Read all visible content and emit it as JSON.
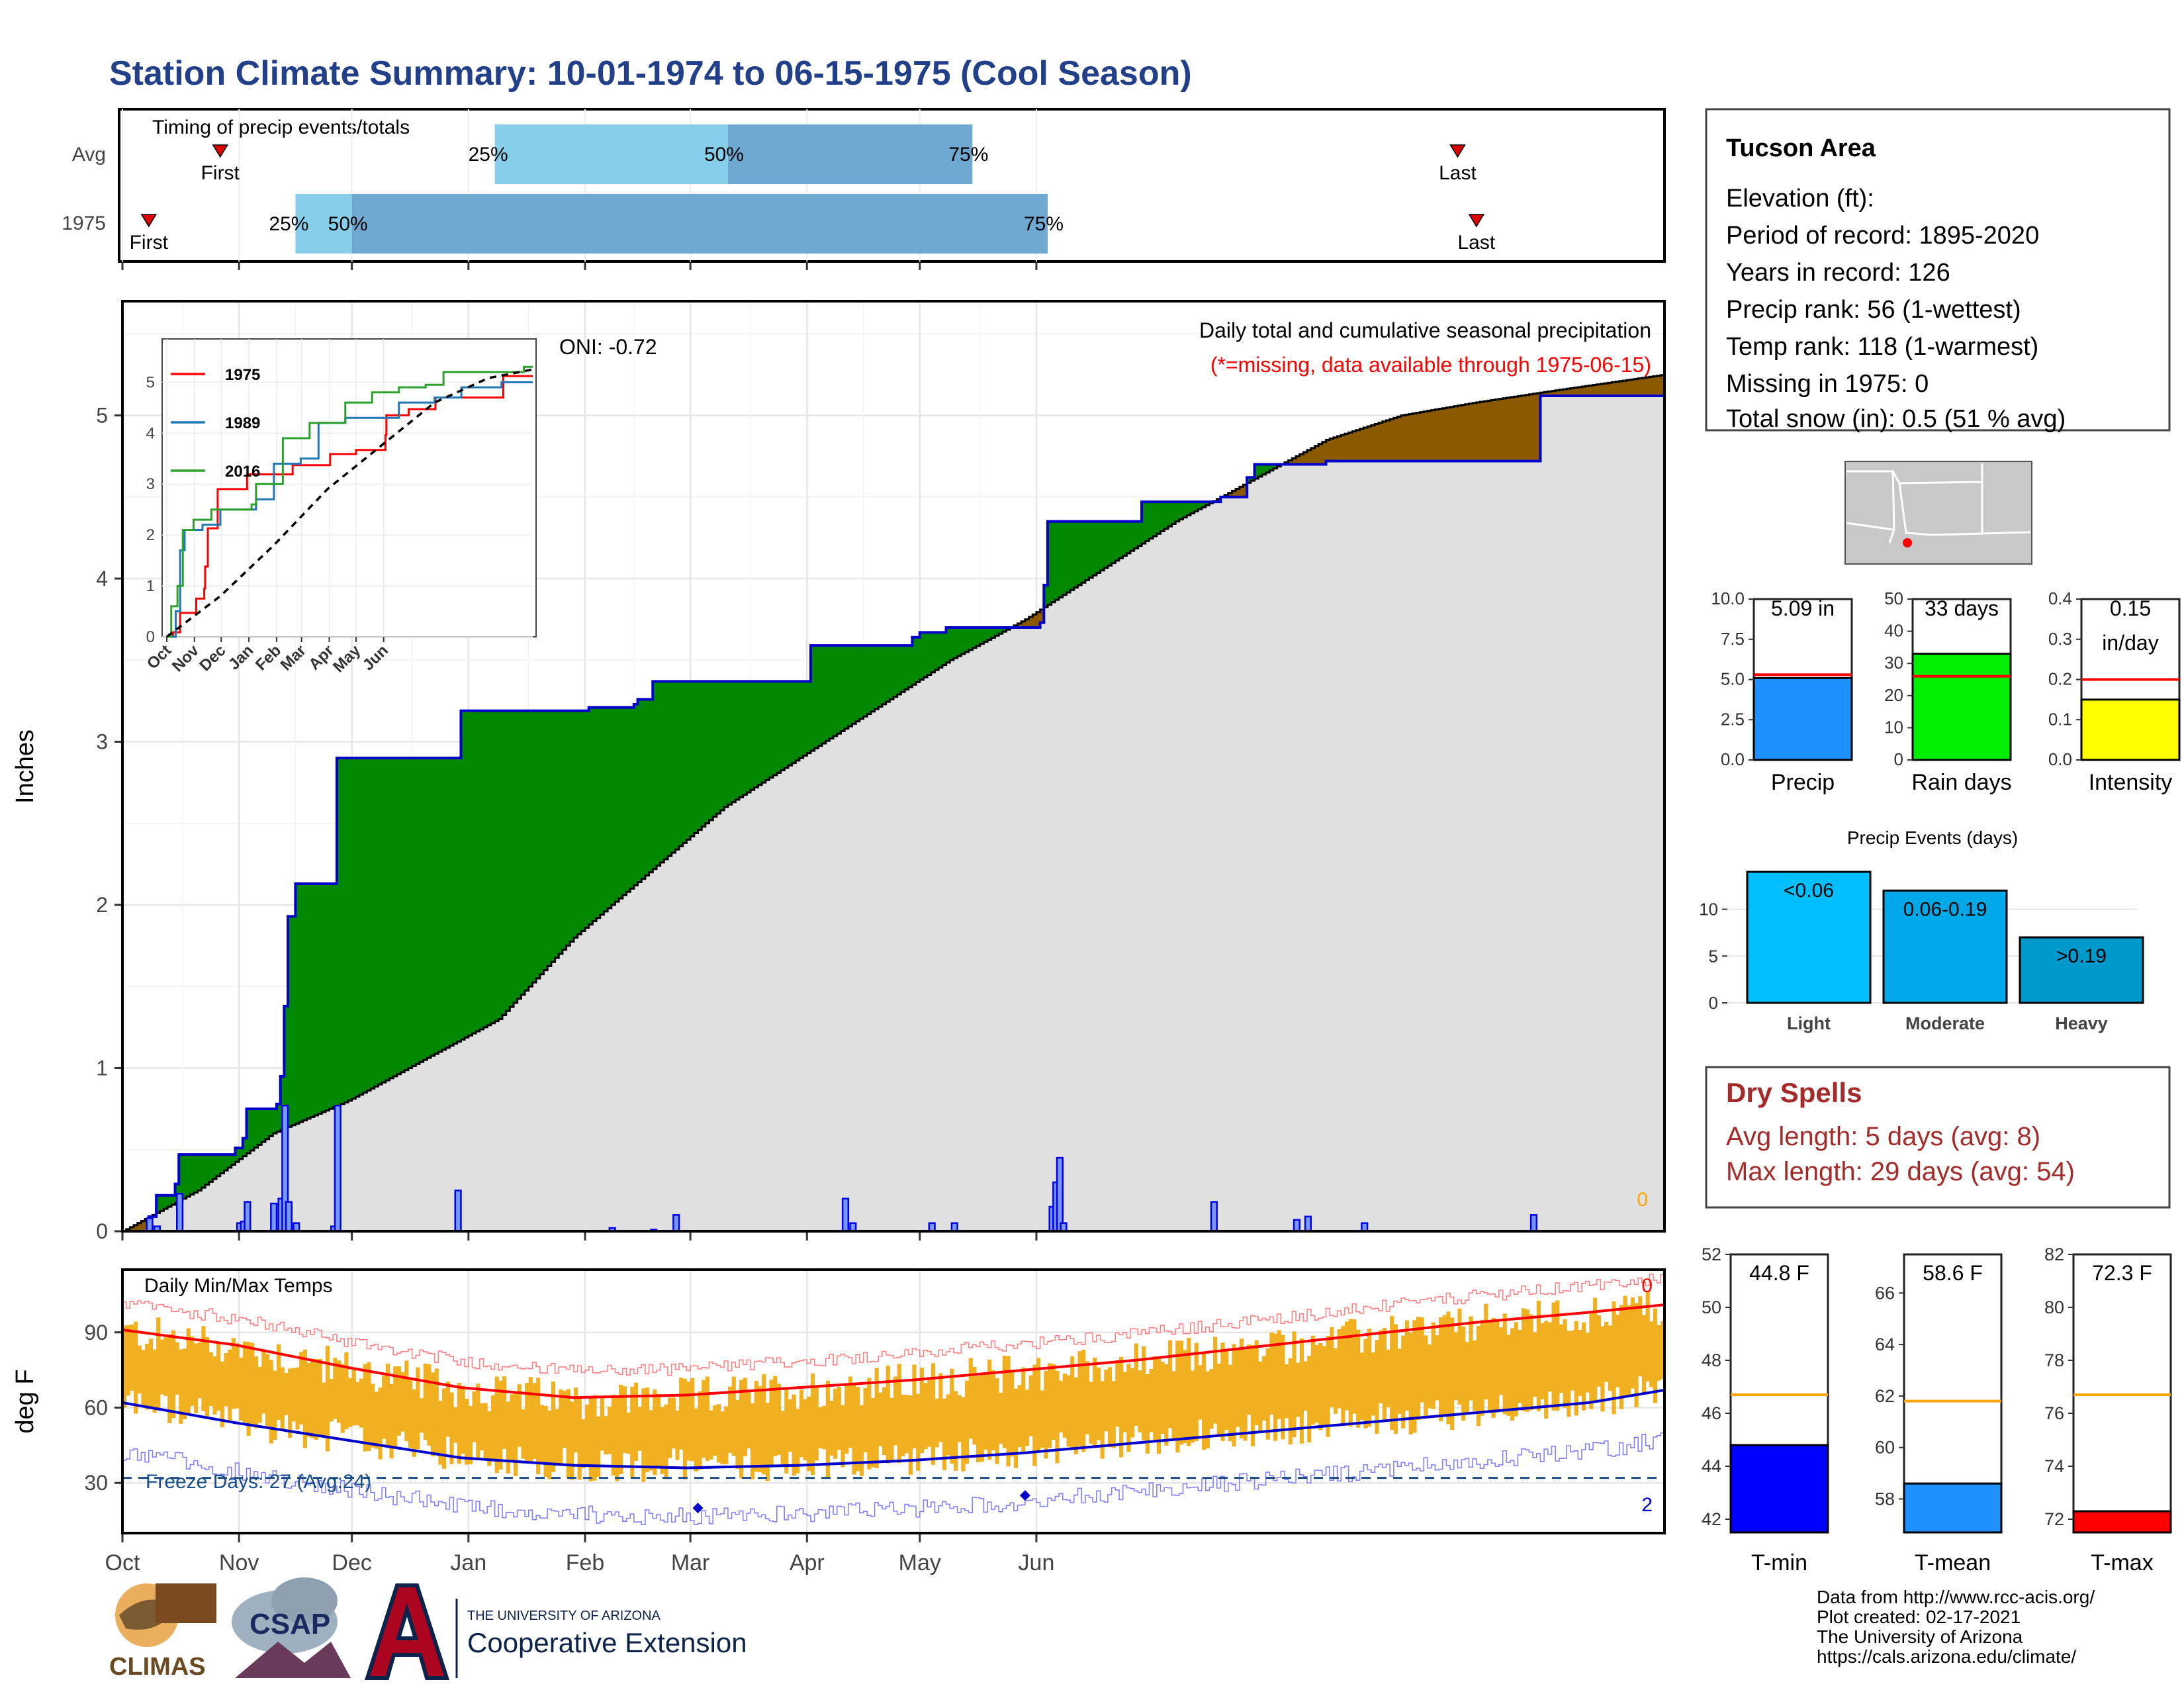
{
  "title": "Station Climate Summary: 10-01-1974 to 06-15-1975 (Cool Season)",
  "colors": {
    "title": "#22408a",
    "above_normal": "#008800",
    "below_normal": "#8b5a00",
    "cumulative_line": "#0000cc",
    "normal_fill": "#e0e0e0",
    "temp_band": "#f0b020",
    "avg_max": "#ff0000",
    "avg_min": "#0000cc",
    "dry_spells": "#a52a2a",
    "missing": "#ffa500"
  },
  "timing": {
    "label": "Timing of precip events/totals",
    "rows": [
      "Avg",
      "1975"
    ],
    "first_label": "First",
    "last_label": "Last",
    "avg": {
      "first_day": 26,
      "p25_day": 99,
      "p50_day": 161,
      "p75_day": 226,
      "last_day": 355
    },
    "y1975": {
      "first_day": 7,
      "p25_day": 46,
      "p50_day": 61,
      "p75_day": 246,
      "last_day": 360
    },
    "p25_label": "25%",
    "p50_label": "50%",
    "p75_label": "75%"
  },
  "main": {
    "ylabel": "Inches",
    "y_ticks": [
      "0",
      "1",
      "2",
      "3",
      "4",
      "5"
    ],
    "annotation": "Daily total and cumulative seasonal precipitation",
    "missing_note": "(*=missing, data available through 1975-06-15)",
    "missing_count": "0",
    "oni": "ONI: -0.72"
  },
  "chart_data": [
    {
      "type": "area",
      "title": "Daily total and cumulative seasonal precipitation",
      "ylabel": "Inches",
      "ylim": [
        0,
        5.7
      ],
      "x_unit": "day of season starting 1974-10-01",
      "cumulative_1975": [
        [
          0,
          0
        ],
        [
          7,
          0.09
        ],
        [
          9,
          0.22
        ],
        [
          14,
          0.29
        ],
        [
          15,
          0.47
        ],
        [
          30,
          0.51
        ],
        [
          32,
          0.57
        ],
        [
          33,
          0.75
        ],
        [
          41,
          0.78
        ],
        [
          42,
          0.95
        ],
        [
          43,
          1.38
        ],
        [
          44,
          1.93
        ],
        [
          46,
          2.13
        ],
        [
          56,
          2.13
        ],
        [
          57,
          2.9
        ],
        [
          89,
          2.9
        ],
        [
          90,
          3.19
        ],
        [
          123,
          3.19
        ],
        [
          124,
          3.21
        ],
        [
          136,
          3.23
        ],
        [
          137,
          3.26
        ],
        [
          141,
          3.37
        ],
        [
          182,
          3.37
        ],
        [
          183,
          3.59
        ],
        [
          206,
          3.59
        ],
        [
          210,
          3.64
        ],
        [
          212,
          3.67
        ],
        [
          219,
          3.7
        ],
        [
          244,
          3.73
        ],
        [
          245,
          3.96
        ],
        [
          246,
          4.35
        ],
        [
          270,
          4.35
        ],
        [
          271,
          4.47
        ],
        [
          292,
          4.5
        ],
        [
          299,
          4.62
        ],
        [
          301,
          4.7
        ],
        [
          320,
          4.72
        ],
        [
          376,
          4.72
        ],
        [
          377,
          5.12
        ],
        [
          410,
          5.12
        ]
      ],
      "normal_cumulative": [
        [
          0,
          0
        ],
        [
          20,
          0.25
        ],
        [
          40,
          0.6
        ],
        [
          60,
          0.8
        ],
        [
          80,
          1.05
        ],
        [
          100,
          1.3
        ],
        [
          120,
          1.8
        ],
        [
          140,
          2.2
        ],
        [
          160,
          2.6
        ],
        [
          180,
          2.9
        ],
        [
          200,
          3.2
        ],
        [
          220,
          3.5
        ],
        [
          240,
          3.75
        ],
        [
          260,
          4.05
        ],
        [
          280,
          4.35
        ],
        [
          300,
          4.6
        ],
        [
          320,
          4.85
        ],
        [
          340,
          5.0
        ],
        [
          360,
          5.08
        ],
        [
          380,
          5.15
        ],
        [
          410,
          5.25
        ]
      ],
      "daily_1975": [
        [
          7,
          0.08
        ],
        [
          9,
          0.03
        ],
        [
          15,
          0.23
        ],
        [
          31,
          0.05
        ],
        [
          32,
          0.06
        ],
        [
          33,
          0.18
        ],
        [
          40,
          0.17
        ],
        [
          42,
          0.2
        ],
        [
          43,
          0.77
        ],
        [
          44,
          0.18
        ],
        [
          46,
          0.05
        ],
        [
          56,
          0.03
        ],
        [
          57,
          0.77
        ],
        [
          89,
          0.25
        ],
        [
          130,
          0.02
        ],
        [
          141,
          0.01
        ],
        [
          147,
          0.1
        ],
        [
          192,
          0.2
        ],
        [
          194,
          0.05
        ],
        [
          215,
          0.05
        ],
        [
          221,
          0.05
        ],
        [
          247,
          0.15
        ],
        [
          248,
          0.3
        ],
        [
          249,
          0.45
        ],
        [
          250,
          0.05
        ],
        [
          290,
          0.18
        ],
        [
          312,
          0.07
        ],
        [
          315,
          0.09
        ],
        [
          330,
          0.05
        ],
        [
          375,
          0.1
        ]
      ]
    },
    {
      "type": "line",
      "title": "Daily Min/Max Temps",
      "ylabel": "deg F",
      "ylim": [
        10,
        115
      ],
      "avg_max": [
        [
          0,
          91
        ],
        [
          30,
          85
        ],
        [
          60,
          76
        ],
        [
          90,
          68
        ],
        [
          120,
          64
        ],
        [
          150,
          65
        ],
        [
          180,
          68
        ],
        [
          210,
          71
        ],
        [
          240,
          75
        ],
        [
          270,
          79
        ],
        [
          300,
          84
        ],
        [
          330,
          89
        ],
        [
          360,
          94
        ],
        [
          390,
          98
        ],
        [
          410,
          101
        ]
      ],
      "avg_min": [
        [
          0,
          62
        ],
        [
          30,
          54
        ],
        [
          60,
          47
        ],
        [
          90,
          40
        ],
        [
          120,
          37
        ],
        [
          150,
          36
        ],
        [
          180,
          37
        ],
        [
          210,
          39
        ],
        [
          240,
          42
        ],
        [
          270,
          46
        ],
        [
          300,
          50
        ],
        [
          330,
          54
        ],
        [
          360,
          58
        ],
        [
          390,
          62
        ],
        [
          410,
          67
        ]
      ],
      "freeze_threshold": 32,
      "max_count": "0",
      "min_count": "2"
    },
    {
      "type": "line",
      "title": "",
      "series": [
        {
          "name": "1975",
          "color": "#ff0000",
          "cum": [
            [
              0,
              0
            ],
            [
              7,
              0.09
            ],
            [
              15,
              0.47
            ],
            [
              33,
              0.75
            ],
            [
              42,
              0.95
            ],
            [
              43,
              1.38
            ],
            [
              46,
              2.13
            ],
            [
              57,
              2.9
            ],
            [
              90,
              3.19
            ],
            [
              141,
              3.37
            ],
            [
              183,
              3.59
            ],
            [
              212,
              3.67
            ],
            [
              245,
              3.96
            ],
            [
              246,
              4.35
            ],
            [
              271,
              4.47
            ],
            [
              301,
              4.7
            ],
            [
              377,
              5.12
            ]
          ]
        },
        {
          "name": "1989",
          "color": "#1f77b4",
          "cum": [
            [
              0,
              0
            ],
            [
              10,
              0.5
            ],
            [
              15,
              1.7
            ],
            [
              20,
              2.1
            ],
            [
              40,
              2.2
            ],
            [
              60,
              2.5
            ],
            [
              100,
              2.7
            ],
            [
              120,
              3.4
            ],
            [
              150,
              3.5
            ],
            [
              170,
              4.2
            ],
            [
              200,
              4.3
            ],
            [
              260,
              4.6
            ],
            [
              300,
              4.7
            ],
            [
              330,
              4.9
            ],
            [
              375,
              5.0
            ]
          ]
        },
        {
          "name": "2016",
          "color": "#2ca02c",
          "cum": [
            [
              0,
              0
            ],
            [
              5,
              0.6
            ],
            [
              12,
              1.0
            ],
            [
              18,
              2.1
            ],
            [
              30,
              2.3
            ],
            [
              50,
              2.5
            ],
            [
              95,
              2.6
            ],
            [
              100,
              3.0
            ],
            [
              130,
              3.9
            ],
            [
              160,
              4.2
            ],
            [
              200,
              4.6
            ],
            [
              230,
              4.8
            ],
            [
              260,
              4.9
            ],
            [
              290,
              4.95
            ],
            [
              310,
              5.2
            ],
            [
              400,
              5.3
            ]
          ]
        }
      ],
      "normal_cum": [
        [
          0,
          0
        ],
        [
          60,
          0.8
        ],
        [
          120,
          1.8
        ],
        [
          180,
          2.9
        ],
        [
          240,
          3.75
        ],
        [
          300,
          4.6
        ],
        [
          360,
          5.08
        ],
        [
          410,
          5.25
        ]
      ],
      "ylim": [
        0,
        5.5
      ],
      "y_ticks": [
        "0",
        "1",
        "2",
        "3",
        "4",
        "5"
      ]
    }
  ],
  "months": [
    "Oct",
    "Nov",
    "Dec",
    "Jan",
    "Feb",
    "Mar",
    "Apr",
    "May",
    "Jun"
  ],
  "inset": {
    "months": [
      "Oct",
      "Nov",
      "Dec",
      "Jan",
      "Feb",
      "Mar",
      "Apr",
      "May",
      "Jun"
    ],
    "legend": [
      "1975",
      "1989",
      "2016"
    ]
  },
  "temps": {
    "label": "Daily Min/Max Temps",
    "ylabel": "deg F",
    "y_ticks": [
      "30",
      "60",
      "90"
    ],
    "freeze_label": "Freeze Days: 27 (Avg:24)",
    "max_count": "0",
    "min_count": "2"
  },
  "station": {
    "name": "Tucson Area",
    "lines": [
      "Elevation (ft):",
      "Period of record: 1895-2020",
      "Years in record: 126",
      "Precip rank: 56 (1-wettest)",
      "Temp rank: 118 (1-warmest)",
      "Missing in 1975: 0",
      "Total snow (in): 0.5 (51 % avg)"
    ]
  },
  "summary_bars": [
    {
      "label": "Precip",
      "value": 5.09,
      "avg": 5.3,
      "max": 10.0,
      "ticks": [
        "0.0",
        "2.5",
        "5.0",
        "7.5",
        "10.0"
      ],
      "text": "5.09 in",
      "color": "#1e90ff"
    },
    {
      "label": "Rain days",
      "value": 33,
      "avg": 26,
      "max": 50,
      "ticks": [
        "0",
        "10",
        "20",
        "30",
        "40",
        "50"
      ],
      "text": "33 days",
      "color": "#00ee00"
    },
    {
      "label": "Intensity",
      "value": 0.15,
      "avg": 0.2,
      "max": 0.4,
      "ticks": [
        "0.0",
        "0.1",
        "0.2",
        "0.3",
        "0.4"
      ],
      "text": "0.15\nin/day",
      "color": "#ffff00"
    }
  ],
  "events": {
    "title": "Precip Events (days)",
    "ticks": [
      "0",
      "5",
      "10"
    ],
    "bars": [
      {
        "label": "Light",
        "value": 14,
        "text": "<0.06",
        "color": "#00bfff"
      },
      {
        "label": "Moderate",
        "value": 12,
        "text": "0.06-0.19",
        "color": "#00a8e8"
      },
      {
        "label": "Heavy",
        "value": 7,
        "text": ">0.19",
        "color": "#0099cc"
      }
    ]
  },
  "dry_spells": {
    "title": "Dry Spells",
    "avg": "Avg length: 5 days (avg: 8)",
    "max": "Max length: 29 days (avg: 54)"
  },
  "temp_bars": [
    {
      "label": "T-min",
      "value": 44.8,
      "avg": 46.7,
      "min": 41.5,
      "max": 52,
      "ticks": [
        "42",
        "44",
        "46",
        "48",
        "50",
        "52"
      ],
      "text": "44.8 F",
      "color": "#0000ff"
    },
    {
      "label": "T-mean",
      "value": 58.6,
      "avg": 61.8,
      "min": 56.7,
      "max": 67.5,
      "ticks": [
        "58",
        "60",
        "62",
        "64",
        "66"
      ],
      "text": "58.6 F",
      "color": "#1e90ff"
    },
    {
      "label": "T-max",
      "value": 72.3,
      "avg": 76.7,
      "min": 71.5,
      "max": 82,
      "ticks": [
        "72",
        "74",
        "76",
        "78",
        "80",
        "82"
      ],
      "text": "72.3 F",
      "color": "#ff0000"
    }
  ],
  "footer": {
    "credits": [
      "Data from http://www.rcc-acis.org/",
      "Plot created: 02-17-2021",
      "The University of Arizona",
      "https://cals.arizona.edu/climate/"
    ],
    "logos": {
      "climas": "CLIMAS",
      "csap": "CSAP",
      "ua_small": "THE UNIVERSITY OF ARIZONA",
      "ua_big": "Cooperative Extension"
    }
  }
}
